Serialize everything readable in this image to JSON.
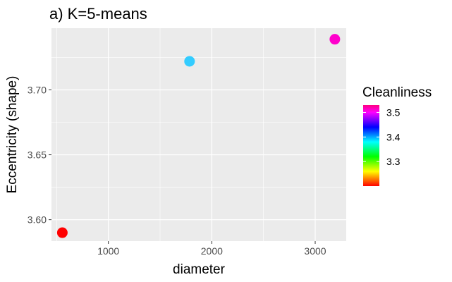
{
  "chart_data": {
    "type": "scatter",
    "title": "a) K=5-means",
    "xlabel": "diameter",
    "ylabel": "Eccentricity (shape)",
    "xlim": [
      450,
      3300
    ],
    "ylim": [
      3.5835,
      3.7475
    ],
    "x_ticks": [
      1000,
      2000,
      3000
    ],
    "x_tick_labels": [
      "1000",
      "2000",
      "3000"
    ],
    "y_ticks": [
      3.6,
      3.65,
      3.7
    ],
    "y_tick_labels": [
      "3.60",
      "3.65",
      "3.70"
    ],
    "grid": true,
    "points": [
      {
        "x": 555,
        "y": 3.59,
        "color_value": 3.2,
        "color": "#ff0000"
      },
      {
        "x": 1785,
        "y": 3.722,
        "color_value": 3.37,
        "color": "#33ccff"
      },
      {
        "x": 3190,
        "y": 3.739,
        "color_value": 3.52,
        "color": "#ff00cc"
      }
    ],
    "legend": {
      "title": "Cleanliness",
      "position": "right",
      "type": "colorbar",
      "range": [
        3.2,
        3.53
      ],
      "ticks": [
        3.3,
        3.4,
        3.5
      ],
      "tick_labels": [
        "3.3",
        "3.4",
        "3.5"
      ],
      "gradient_colors": [
        "#ff0000",
        "#ff8000",
        "#ffff00",
        "#80ff00",
        "#00ff00",
        "#00ff80",
        "#00ffff",
        "#0080ff",
        "#0000ff",
        "#8000ff",
        "#ff00ff",
        "#ff0080"
      ]
    },
    "panel_color": "#ebebeb",
    "grid_color": "#ffffff"
  }
}
